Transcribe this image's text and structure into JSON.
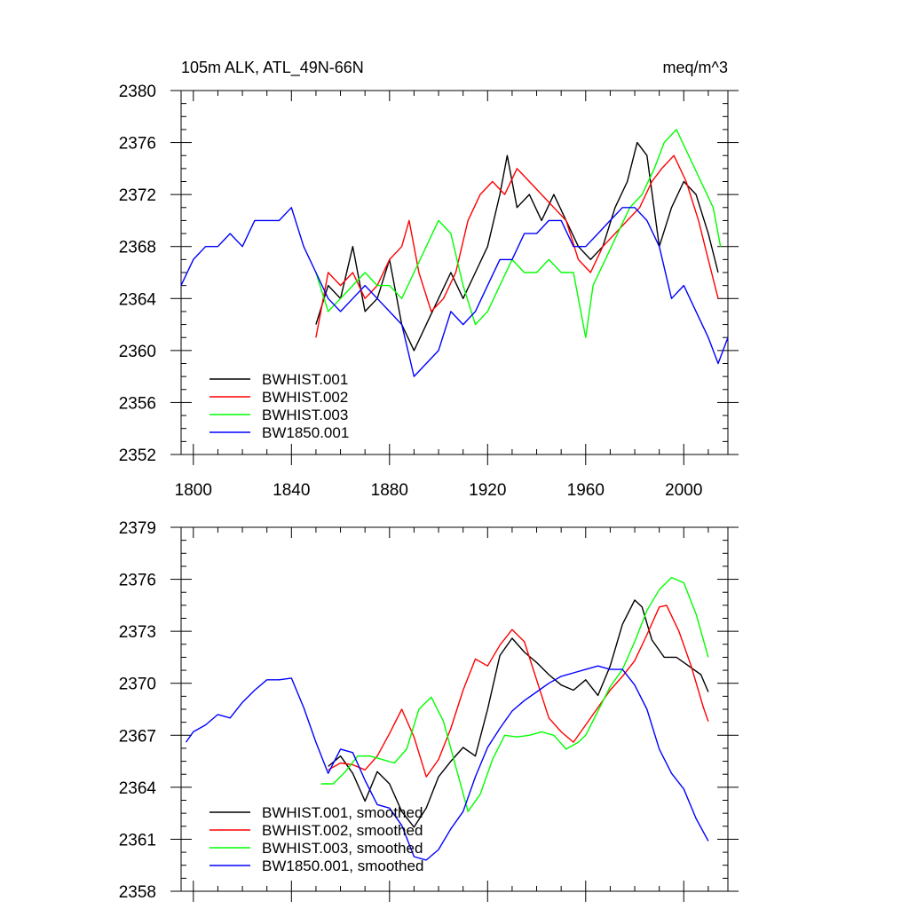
{
  "chart_data": [
    {
      "type": "line",
      "title_left": "105m ALK, ATL_49N-66N",
      "title_right": "meq/m^3",
      "xlim": [
        1795,
        2018
      ],
      "ylim": [
        2352,
        2380
      ],
      "xticks": [
        1800,
        1840,
        1880,
        1920,
        1960,
        2000
      ],
      "yticks": [
        2352,
        2356,
        2360,
        2364,
        2368,
        2372,
        2376,
        2380
      ],
      "legend_position": "bottom-left",
      "series": [
        {
          "name": "BWHIST.001",
          "color": "#000000",
          "x": [
            1850,
            1855,
            1860,
            1865,
            1870,
            1875,
            1880,
            1885,
            1890,
            1895,
            1900,
            1905,
            1910,
            1915,
            1920,
            1925,
            1928,
            1932,
            1937,
            1942,
            1947,
            1952,
            1957,
            1962,
            1967,
            1972,
            1977,
            1981,
            1985,
            1990,
            1995,
            2000,
            2005,
            2010,
            2014
          ],
          "y": [
            2362,
            2365,
            2364,
            2368,
            2363,
            2364,
            2367,
            2362,
            2360,
            2362,
            2364,
            2366,
            2364,
            2366,
            2368,
            2372,
            2375,
            2371,
            2372,
            2370,
            2372,
            2370,
            2368,
            2367,
            2368,
            2371,
            2373,
            2376,
            2375,
            2368,
            2371,
            2373,
            2372,
            2369,
            2366
          ]
        },
        {
          "name": "BWHIST.002",
          "color": "#ff0000",
          "x": [
            1850,
            1855,
            1860,
            1865,
            1870,
            1875,
            1880,
            1885,
            1888,
            1892,
            1897,
            1902,
            1907,
            1912,
            1917,
            1922,
            1927,
            1932,
            1937,
            1942,
            1947,
            1952,
            1957,
            1962,
            1967,
            1972,
            1977,
            1982,
            1987,
            1991,
            1996,
            2001,
            2006,
            2010,
            2014
          ],
          "y": [
            2361,
            2366,
            2365,
            2366,
            2364,
            2365,
            2367,
            2368,
            2370,
            2366,
            2363,
            2364,
            2366,
            2370,
            2372,
            2373,
            2372,
            2374,
            2373,
            2372,
            2371,
            2370,
            2367,
            2366,
            2368,
            2369,
            2370,
            2371,
            2373,
            2374,
            2375,
            2373,
            2370,
            2367,
            2364
          ]
        },
        {
          "name": "BWHIST.003",
          "color": "#00ff00",
          "x": [
            1850,
            1855,
            1860,
            1865,
            1870,
            1875,
            1880,
            1885,
            1890,
            1895,
            1900,
            1905,
            1910,
            1915,
            1920,
            1925,
            1930,
            1935,
            1940,
            1945,
            1950,
            1955,
            1960,
            1963,
            1968,
            1973,
            1978,
            1983,
            1988,
            1992,
            1997,
            2002,
            2007,
            2012,
            2015
          ],
          "y": [
            2366,
            2363,
            2364,
            2365,
            2366,
            2365,
            2365,
            2364,
            2366,
            2368,
            2370,
            2369,
            2365,
            2362,
            2363,
            2365,
            2367,
            2366,
            2366,
            2367,
            2366,
            2366,
            2361,
            2365,
            2367,
            2369,
            2371,
            2372,
            2374,
            2376,
            2377,
            2375,
            2373,
            2371,
            2368
          ]
        },
        {
          "name": "BW1850.001",
          "color": "#0000ff",
          "x": [
            1795,
            1800,
            1805,
            1810,
            1815,
            1820,
            1825,
            1830,
            1835,
            1840,
            1845,
            1850,
            1855,
            1860,
            1865,
            1870,
            1875,
            1880,
            1885,
            1890,
            1895,
            1900,
            1905,
            1910,
            1915,
            1920,
            1925,
            1930,
            1935,
            1940,
            1945,
            1950,
            1955,
            1960,
            1965,
            1970,
            1975,
            1980,
            1985,
            1990,
            1995,
            2000,
            2005,
            2010,
            2014,
            2018
          ],
          "y": [
            2365,
            2367,
            2368,
            2368,
            2369,
            2368,
            2370,
            2370,
            2370,
            2371,
            2368,
            2366,
            2364,
            2363,
            2364,
            2365,
            2364,
            2363,
            2362,
            2358,
            2359,
            2360,
            2363,
            2362,
            2363,
            2365,
            2367,
            2367,
            2369,
            2369,
            2370,
            2370,
            2368,
            2368,
            2369,
            2370,
            2371,
            2371,
            2370,
            2368,
            2364,
            2365,
            2363,
            2361,
            2359,
            2361
          ]
        }
      ],
      "legend": [
        "BWHIST.001",
        "BWHIST.002",
        "BWHIST.003",
        "BW1850.001"
      ]
    },
    {
      "type": "line",
      "xlim": [
        1795,
        2018
      ],
      "ylim": [
        2358,
        2379
      ],
      "yticks": [
        2358,
        2361,
        2364,
        2367,
        2370,
        2373,
        2376,
        2379
      ],
      "legend_position": "bottom-left",
      "series": [
        {
          "name": "BWHIST.001, smoothed",
          "color": "#000000",
          "x": [
            1855,
            1860,
            1865,
            1870,
            1875,
            1880,
            1885,
            1890,
            1895,
            1900,
            1905,
            1910,
            1915,
            1920,
            1925,
            1930,
            1935,
            1940,
            1945,
            1950,
            1955,
            1960,
            1965,
            1970,
            1975,
            1980,
            1983,
            1987,
            1992,
            1997,
            2002,
            2007,
            2010
          ],
          "y": [
            2365.2,
            2365.8,
            2364.8,
            2363.2,
            2364.9,
            2364.2,
            2362.6,
            2361.7,
            2362.8,
            2364.6,
            2365.5,
            2366.3,
            2365.8,
            2368.5,
            2371.6,
            2372.6,
            2371.8,
            2371.2,
            2370.5,
            2369.9,
            2369.6,
            2370.2,
            2369.3,
            2371.0,
            2373.4,
            2374.8,
            2374.4,
            2372.5,
            2371.5,
            2371.5,
            2371.0,
            2370.5,
            2369.5
          ]
        },
        {
          "name": "BWHIST.002, smoothed",
          "color": "#ff0000",
          "x": [
            1855,
            1860,
            1865,
            1870,
            1875,
            1880,
            1885,
            1890,
            1895,
            1900,
            1905,
            1910,
            1915,
            1920,
            1925,
            1930,
            1935,
            1940,
            1945,
            1950,
            1955,
            1960,
            1965,
            1970,
            1975,
            1980,
            1985,
            1990,
            1993,
            1998,
            2003,
            2008,
            2010
          ],
          "y": [
            2365.0,
            2365.4,
            2365.3,
            2365.0,
            2365.8,
            2367.1,
            2368.5,
            2366.9,
            2364.6,
            2365.6,
            2367.4,
            2369.6,
            2371.4,
            2371.0,
            2372.2,
            2373.1,
            2372.4,
            2370.2,
            2368.0,
            2367.2,
            2366.6,
            2367.6,
            2368.6,
            2369.6,
            2370.4,
            2371.3,
            2372.8,
            2374.4,
            2374.5,
            2373.0,
            2371.0,
            2368.6,
            2367.8
          ]
        },
        {
          "name": "BWHIST.003, smoothed",
          "color": "#00ff00",
          "x": [
            1852,
            1857,
            1862,
            1867,
            1872,
            1877,
            1882,
            1887,
            1892,
            1897,
            1902,
            1907,
            1912,
            1917,
            1922,
            1927,
            1932,
            1937,
            1942,
            1947,
            1952,
            1957,
            1960,
            1965,
            1970,
            1975,
            1980,
            1985,
            1990,
            1995,
            2000,
            2005,
            2010
          ],
          "y": [
            2364.2,
            2364.2,
            2364.9,
            2365.8,
            2365.8,
            2365.6,
            2365.4,
            2366.2,
            2368.5,
            2369.2,
            2367.8,
            2365.2,
            2362.6,
            2363.6,
            2365.6,
            2367.0,
            2366.9,
            2367.0,
            2367.2,
            2367.0,
            2366.2,
            2366.6,
            2367.0,
            2368.4,
            2369.8,
            2370.8,
            2372.4,
            2374.2,
            2375.4,
            2376.1,
            2375.8,
            2374.0,
            2371.5
          ]
        },
        {
          "name": "BW1850.001, smoothed",
          "color": "#0000ff",
          "x": [
            1797,
            1800,
            1805,
            1810,
            1815,
            1820,
            1825,
            1830,
            1835,
            1840,
            1845,
            1850,
            1855,
            1860,
            1865,
            1870,
            1875,
            1880,
            1885,
            1890,
            1895,
            1900,
            1905,
            1910,
            1915,
            1920,
            1925,
            1930,
            1935,
            1940,
            1945,
            1950,
            1955,
            1960,
            1965,
            1970,
            1975,
            1980,
            1985,
            1990,
            1995,
            2000,
            2005,
            2010
          ],
          "y": [
            2366.6,
            2367.2,
            2367.6,
            2368.2,
            2368.0,
            2368.9,
            2369.6,
            2370.2,
            2370.2,
            2370.3,
            2368.6,
            2366.6,
            2364.8,
            2366.2,
            2366.0,
            2364.4,
            2363.0,
            2362.8,
            2361.8,
            2360.0,
            2359.8,
            2360.4,
            2361.6,
            2362.6,
            2364.6,
            2366.3,
            2367.4,
            2368.4,
            2369.0,
            2369.5,
            2370.0,
            2370.4,
            2370.6,
            2370.8,
            2371.0,
            2370.8,
            2370.8,
            2369.9,
            2368.5,
            2366.2,
            2364.8,
            2363.9,
            2362.2,
            2360.9
          ]
        }
      ],
      "legend": [
        "BWHIST.001, smoothed",
        "BWHIST.002, smoothed",
        "BWHIST.003, smoothed",
        "BW1850.001, smoothed"
      ]
    }
  ]
}
